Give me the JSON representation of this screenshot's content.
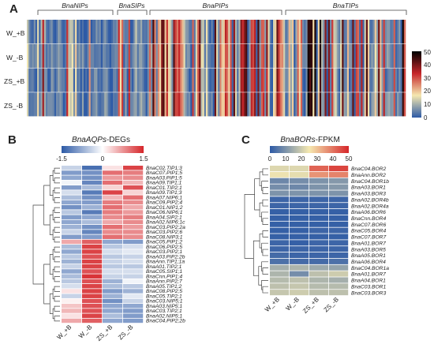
{
  "panels": [
    {
      "letter": "A",
      "type": "heatmap",
      "rows": [
        "W_+B",
        "W_-B",
        "ZS_+B",
        "ZS_-B"
      ],
      "groups": [
        "BnaNIPs",
        "BnaSIPs",
        "BnaPIPs",
        "BnaTIPs"
      ],
      "colorbar": {
        "min": 0,
        "max": 50,
        "ticks": [
          0,
          10,
          20,
          30,
          40,
          50
        ],
        "colors": [
          "#2d5aa6",
          "#f5e8b0",
          "#c6262a",
          "#000000"
        ]
      }
    },
    {
      "letter": "B",
      "type": "heatmap",
      "title_italic": "BnaAQPs",
      "title_rest": "-DEGs",
      "colorbar": {
        "min": -1.5,
        "max": 1.5,
        "ticks": [
          "-1.5",
          "0",
          "1.5"
        ],
        "colors": [
          "#2d5aa6",
          "#ffffff",
          "#d6262a"
        ]
      },
      "columns": [
        "W_+B",
        "W_-B",
        "ZS_+B",
        "ZS_-B"
      ],
      "genes": [
        "BnaC02.TIP1;3",
        "BnaC07.PIP1;5",
        "BnaA03.PIP1;5",
        "BnaA09.TIP1;1",
        "BnaC01.TIP2;1",
        "BnaA09.TIP1;3",
        "BnaA07.NIP6;1",
        "BnaC09.PIP2;4",
        "BnaC01.NIP1;2",
        "BnaC06.NIP6;1",
        "BnaA04.SIP2;1",
        "BnaA02.NIP6;1c",
        "BnaC03.PIP2;2a",
        "BnaC03.PIP2;6",
        "BnaC08.NIP3;1",
        "BnaC05.PIP1;2",
        "BnaC06.PIP2;5",
        "BnaC03.PIP2;1",
        "BnaA03.PIP2;2b",
        "BnaAnn.TIP1;1a",
        "BnaA01.TIP2;1",
        "BnaC05.SIP1;1",
        "BnaCnn.PIP1;4",
        "BnaAnn.PIP2;7",
        "BnaA05.TIP1;2",
        "BnaC08.PIP2;5",
        "BnaC05.TIP2;1",
        "BnaC03.NIP5;1",
        "BnaA03.NIP5;1",
        "BnaC03.TIP2;1",
        "BnaA02.NIP5;1",
        "BnaC04.PIP2;2b"
      ],
      "values": [
        [
          -0.4,
          -1.3,
          0.2,
          1.3
        ],
        [
          -0.9,
          -1.0,
          1.0,
          0.9
        ],
        [
          -0.8,
          -1.0,
          0.7,
          0.8
        ],
        [
          -0.1,
          -1.1,
          1.0,
          0.5
        ],
        [
          -0.9,
          -0.6,
          0.3,
          1.2
        ],
        [
          -0.3,
          -1.2,
          1.3,
          0.3
        ],
        [
          -0.6,
          -1.0,
          0.5,
          1.0
        ],
        [
          -0.8,
          -0.9,
          0.9,
          0.8
        ],
        [
          -1.0,
          -0.7,
          1.0,
          0.6
        ],
        [
          -0.5,
          -1.2,
          0.9,
          0.7
        ],
        [
          -0.9,
          -0.8,
          0.8,
          0.9
        ],
        [
          -0.8,
          -0.6,
          0.6,
          0.8
        ],
        [
          -0.7,
          -1.0,
          1.0,
          0.7
        ],
        [
          -0.4,
          -1.1,
          0.8,
          0.8
        ],
        [
          -0.9,
          -0.9,
          1.0,
          0.8
        ],
        [
          0.6,
          1.1,
          -0.8,
          -0.9
        ],
        [
          -0.6,
          1.3,
          -0.5,
          -0.3
        ],
        [
          -0.8,
          1.3,
          -0.3,
          -0.2
        ],
        [
          -0.5,
          1.2,
          -0.5,
          -0.4
        ],
        [
          -0.7,
          1.3,
          -0.4,
          -0.3
        ],
        [
          -0.4,
          1.3,
          -0.5,
          -0.5
        ],
        [
          -0.8,
          1.2,
          -0.3,
          -0.3
        ],
        [
          -0.6,
          1.4,
          -0.4,
          -0.4
        ],
        [
          -0.5,
          1.2,
          -0.7,
          -0.1
        ],
        [
          -0.3,
          1.3,
          -0.6,
          -0.5
        ],
        [
          0.2,
          1.3,
          -0.9,
          -0.7
        ],
        [
          -0.4,
          1.3,
          -0.7,
          -0.2
        ],
        [
          0.1,
          1.2,
          -1.0,
          -0.4
        ],
        [
          0.4,
          1.2,
          -0.8,
          -0.8
        ],
        [
          0.5,
          1.2,
          -0.8,
          -0.9
        ],
        [
          0.2,
          1.3,
          -0.6,
          -0.9
        ],
        [
          0.6,
          1.1,
          -0.8,
          -0.9
        ]
      ]
    },
    {
      "letter": "C",
      "type": "heatmap",
      "title_italic": "BnaBORs",
      "title_rest": "-FPKM",
      "colorbar": {
        "min": 0,
        "max": 50,
        "ticks": [
          "0",
          "10",
          "20",
          "30",
          "40",
          "50"
        ],
        "colors": [
          "#2d5aa6",
          "#f5e8b0",
          "#d6262a"
        ]
      },
      "columns": [
        "W_+B",
        "W_-B",
        "ZS_+B",
        "ZS_-B"
      ],
      "genes": [
        "BnaC04.BOR2",
        "BnaAnn.BOR2",
        "BnaC04.BOR1b",
        "BnaA03.BOR1",
        "BnaA03.BOR3",
        "BnaA02.BOR4b",
        "BnaA02.BOR4a",
        "BnaA06.BOR6",
        "BnaCnn.BOR4",
        "BnaC07.BOR6",
        "BnaC05.BOR4",
        "BnaC07.BOR7",
        "BnaA01.BOR7",
        "BnaA03.BOR5",
        "BnaA05.BOR1",
        "BnaA06.BOR4",
        "BnaC04.BOR1a",
        "BnaA01.BOR7",
        "BnaA04.BOR1",
        "BnaC03.BOR1",
        "BnaC03.BOR3"
      ],
      "values": [
        [
          22,
          22,
          42,
          46
        ],
        [
          24,
          23,
          36,
          38
        ],
        [
          8,
          9,
          10,
          11
        ],
        [
          9,
          8,
          10,
          11
        ],
        [
          10,
          10,
          10,
          10
        ],
        [
          2,
          2,
          2,
          2
        ],
        [
          2,
          2,
          2,
          2
        ],
        [
          1,
          1,
          1,
          1
        ],
        [
          1,
          1,
          1,
          1
        ],
        [
          1,
          1,
          1,
          1
        ],
        [
          1,
          1,
          2,
          2
        ],
        [
          1,
          1,
          1,
          1
        ],
        [
          2,
          1,
          2,
          2
        ],
        [
          2,
          2,
          2,
          2
        ],
        [
          3,
          2,
          2,
          2
        ],
        [
          4,
          3,
          3,
          4
        ],
        [
          15,
          16,
          14,
          13
        ],
        [
          16,
          9,
          18,
          20
        ],
        [
          17,
          18,
          16,
          15
        ],
        [
          18,
          19,
          17,
          17
        ],
        [
          19,
          20,
          18,
          18
        ]
      ]
    }
  ]
}
